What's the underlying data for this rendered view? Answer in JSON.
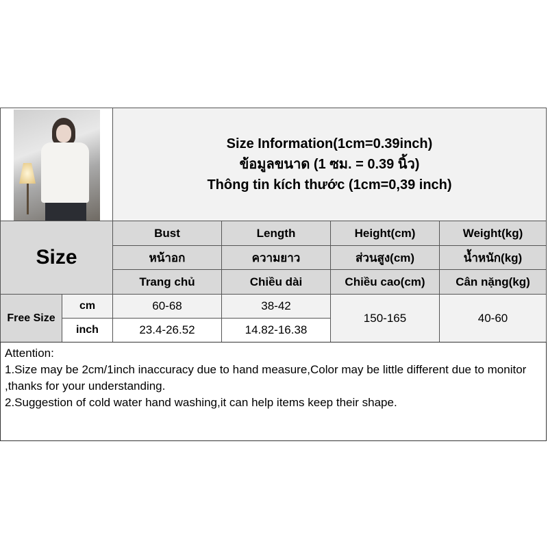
{
  "header": {
    "title_lines": [
      "Size Information(1cm=0.39inch)",
      "ข้อมูลขนาด (1 ซม. = 0.39 นิ้ว)",
      "Thông tin kích thước (1cm=0,39 inch)"
    ]
  },
  "table": {
    "size_label": "Size",
    "columns": [
      {
        "en": "Bust",
        "th": "หน้าอก",
        "vi": "Trang chủ"
      },
      {
        "en": "Length",
        "th": "ความยาว",
        "vi": "Chiều dài"
      },
      {
        "en": "Height(cm)",
        "th": "ส่วนสูง(cm)",
        "vi": "Chiều cao(cm)"
      },
      {
        "en": "Weight(kg)",
        "th": "น้ำหนัก(kg)",
        "vi": "Cân nặng(kg)"
      }
    ],
    "row": {
      "size": "Free Size",
      "units": [
        "cm",
        "inch"
      ],
      "bust": {
        "cm": "60-68",
        "inch": "23.4-26.52"
      },
      "length": {
        "cm": "38-42",
        "inch": "14.82-16.38"
      },
      "height": "150-165",
      "weight": "40-60"
    }
  },
  "attention": {
    "heading": "Attention:",
    "items": [
      "1.Size may be 2cm/1inch inaccuracy due to hand measure,Color may be little different due to monitor ,thanks for your understanding.",
      "2.Suggestion of cold water hand washing,it can help items keep their shape."
    ]
  }
}
